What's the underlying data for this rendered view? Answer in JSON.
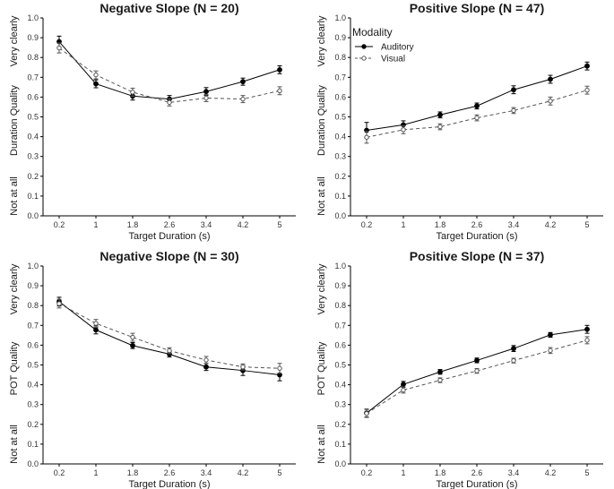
{
  "x_axis": {
    "label": "Target Duration (s)",
    "ticks": [
      0.2,
      1,
      1.8,
      2.6,
      3.4,
      4.2,
      5
    ]
  },
  "y_anchor_labels": {
    "top": "Very clearly",
    "bottom": "Not at all"
  },
  "legend": {
    "title": "Modality",
    "entries": [
      {
        "label": "Auditory",
        "style": "solid",
        "marker": "filled"
      },
      {
        "label": "Visual",
        "style": "dashed",
        "marker": "open"
      }
    ]
  },
  "colors": {
    "line": "#000000",
    "visual_line": "#555555",
    "axis": "#000000",
    "background": "#ffffff"
  },
  "chart_data": [
    {
      "type": "line",
      "id": "top-left",
      "title": "Negative Slope (N = 20)",
      "xlabel": "Target Duration (s)",
      "ylabel": "Duration Quality",
      "ylim": [
        0,
        1
      ],
      "yticks": [
        0.0,
        0.1,
        0.2,
        0.3,
        0.4,
        0.5,
        0.6,
        0.7,
        0.8,
        0.9,
        1.0
      ],
      "categories": [
        0.2,
        1,
        1.8,
        2.6,
        3.4,
        4.2,
        5
      ],
      "series": [
        {
          "name": "Auditory",
          "values": [
            0.88,
            0.667,
            0.605,
            0.59,
            0.628,
            0.678,
            0.738
          ],
          "errors": [
            0.028,
            0.02,
            0.02,
            0.018,
            0.02,
            0.018,
            0.02
          ]
        },
        {
          "name": "Visual",
          "values": [
            0.848,
            0.712,
            0.625,
            0.573,
            0.595,
            0.59,
            0.632
          ],
          "errors": [
            0.025,
            0.02,
            0.02,
            0.018,
            0.018,
            0.018,
            0.02
          ]
        }
      ]
    },
    {
      "type": "line",
      "id": "top-right",
      "title": "Positive Slope (N = 47)",
      "xlabel": "Target Duration (s)",
      "ylabel": "Duration Quality",
      "ylim": [
        0,
        1
      ],
      "yticks": [
        0.0,
        0.1,
        0.2,
        0.3,
        0.4,
        0.5,
        0.6,
        0.7,
        0.8,
        0.9,
        1.0
      ],
      "categories": [
        0.2,
        1,
        1.8,
        2.6,
        3.4,
        4.2,
        5
      ],
      "series": [
        {
          "name": "Auditory",
          "values": [
            0.432,
            0.46,
            0.51,
            0.555,
            0.637,
            0.69,
            0.757
          ],
          "errors": [
            0.04,
            0.02,
            0.015,
            0.015,
            0.02,
            0.02,
            0.02
          ]
        },
        {
          "name": "Visual",
          "values": [
            0.397,
            0.435,
            0.45,
            0.495,
            0.532,
            0.58,
            0.635
          ],
          "errors": [
            0.03,
            0.02,
            0.015,
            0.015,
            0.015,
            0.02,
            0.02
          ]
        }
      ]
    },
    {
      "type": "line",
      "id": "bottom-left",
      "title": "Negative Slope (N = 30)",
      "xlabel": "Target Duration (s)",
      "ylabel": "POT Quality",
      "ylim": [
        0,
        1
      ],
      "yticks": [
        0.0,
        0.1,
        0.2,
        0.3,
        0.4,
        0.5,
        0.6,
        0.7,
        0.8,
        0.9,
        1.0
      ],
      "categories": [
        0.2,
        1,
        1.8,
        2.6,
        3.4,
        4.2,
        5
      ],
      "series": [
        {
          "name": "Auditory",
          "values": [
            0.82,
            0.677,
            0.598,
            0.555,
            0.49,
            0.472,
            0.45
          ],
          "errors": [
            0.022,
            0.02,
            0.015,
            0.015,
            0.018,
            0.025,
            0.03
          ]
        },
        {
          "name": "Visual",
          "values": [
            0.81,
            0.71,
            0.64,
            0.572,
            0.525,
            0.49,
            0.483
          ],
          "errors": [
            0.022,
            0.02,
            0.02,
            0.015,
            0.018,
            0.015,
            0.025
          ]
        }
      ]
    },
    {
      "type": "line",
      "id": "bottom-right",
      "title": "Positive Slope (N = 37)",
      "xlabel": "Target Duration (s)",
      "ylabel": "POT Quality",
      "ylim": [
        0,
        1
      ],
      "yticks": [
        0.0,
        0.1,
        0.2,
        0.3,
        0.4,
        0.5,
        0.6,
        0.7,
        0.8,
        0.9,
        1.0
      ],
      "categories": [
        0.2,
        1,
        1.8,
        2.6,
        3.4,
        4.2,
        5
      ],
      "series": [
        {
          "name": "Auditory",
          "values": [
            0.257,
            0.402,
            0.465,
            0.523,
            0.583,
            0.652,
            0.68
          ],
          "errors": [
            0.02,
            0.015,
            0.012,
            0.012,
            0.015,
            0.012,
            0.02
          ]
        },
        {
          "name": "Visual",
          "values": [
            0.255,
            0.373,
            0.423,
            0.47,
            0.522,
            0.573,
            0.625
          ],
          "errors": [
            0.02,
            0.015,
            0.012,
            0.012,
            0.012,
            0.015,
            0.018
          ]
        }
      ]
    }
  ]
}
